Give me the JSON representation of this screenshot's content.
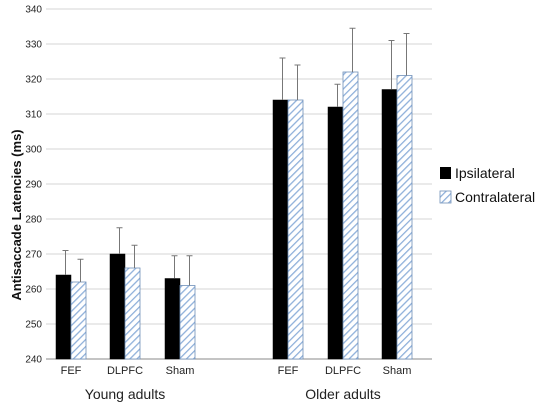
{
  "chart_data": {
    "type": "bar",
    "title": "",
    "ylabel": "Antisaccade Latencies (ms)",
    "xlabel": "",
    "ylim": [
      240,
      340
    ],
    "yticks": [
      240,
      250,
      260,
      270,
      280,
      290,
      300,
      310,
      320,
      330,
      340
    ],
    "grid": true,
    "legend_position": "right",
    "groups": [
      {
        "label": "Young adults",
        "categories": [
          "FEF",
          "DLPFC",
          "Sham"
        ]
      },
      {
        "label": "Older adults",
        "categories": [
          "FEF",
          "DLPFC",
          "Sham"
        ]
      }
    ],
    "categories": [
      "FEF",
      "DLPFC",
      "Sham",
      "FEF",
      "DLPFC",
      "Sham"
    ],
    "series": [
      {
        "name": "Ipsilateral",
        "color": "#000000",
        "pattern": "solid",
        "values": [
          264,
          270,
          263,
          314,
          312,
          317
        ],
        "errors": [
          7,
          7.5,
          6.5,
          12,
          6.5,
          14
        ]
      },
      {
        "name": "Contralateral",
        "color": "#9db7dc",
        "pattern": "hatched",
        "values": [
          262,
          266,
          261,
          314,
          322,
          321
        ],
        "errors": [
          6.5,
          6.5,
          8.5,
          10,
          12.5,
          12
        ]
      }
    ]
  }
}
